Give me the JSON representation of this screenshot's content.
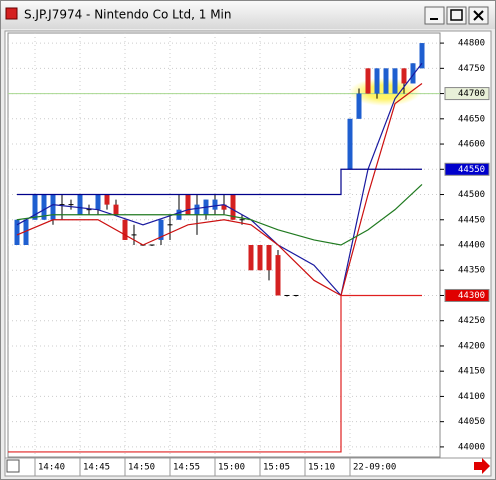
{
  "chart_data": {
    "type": "ohlc",
    "title": "S.JP.J7974 - Nintendo Co Ltd, 1 Min",
    "x": [
      1,
      2,
      3,
      4,
      5,
      6,
      7,
      8,
      9,
      10,
      11,
      12,
      13,
      14,
      15,
      16,
      17,
      18,
      19,
      20,
      21,
      22,
      23,
      24,
      25,
      26,
      27,
      28,
      29,
      30,
      31,
      32,
      38,
      39,
      40,
      41,
      42,
      43,
      44,
      45,
      46
    ],
    "open": [
      44400,
      44400,
      44450,
      44450,
      44450,
      44480,
      44480,
      44460,
      44470,
      44470,
      44500,
      44480,
      44450,
      44420,
      44400,
      44400,
      44410,
      44440,
      44450,
      44500,
      44460,
      44460,
      44470,
      44480,
      44500,
      44450,
      44400,
      44400,
      44400,
      44380,
      44300,
      44300,
      44550,
      44650,
      44750,
      44700,
      44700,
      44700,
      44750,
      44720,
      44750
    ],
    "high": [
      44450,
      44450,
      44500,
      44500,
      44500,
      44500,
      44490,
      44500,
      44480,
      44500,
      44500,
      44490,
      44450,
      44440,
      44400,
      44400,
      44450,
      44460,
      44500,
      44500,
      44500,
      44490,
      44500,
      44500,
      44500,
      44460,
      44400,
      44400,
      44400,
      44390,
      44300,
      44300,
      44650,
      44710,
      44750,
      44750,
      44750,
      44750,
      44750,
      44760,
      44800
    ],
    "low": [
      44400,
      44400,
      44450,
      44450,
      44440,
      44450,
      44470,
      44460,
      44460,
      44460,
      44470,
      44460,
      44410,
      44400,
      44400,
      44400,
      44400,
      44410,
      44450,
      44460,
      44420,
      44450,
      44460,
      44460,
      44450,
      44440,
      44350,
      44350,
      44330,
      44300,
      44300,
      44300,
      44550,
      44650,
      44700,
      44690,
      44700,
      44700,
      44700,
      44720,
      44750
    ],
    "close": [
      44450,
      44450,
      44500,
      44500,
      44500,
      44480,
      44480,
      44500,
      44470,
      44500,
      44480,
      44460,
      44410,
      44420,
      44400,
      44400,
      44450,
      44440,
      44470,
      44460,
      44480,
      44490,
      44490,
      44470,
      44450,
      44450,
      44350,
      44350,
      44350,
      44300,
      44300,
      44300,
      44650,
      44700,
      44700,
      44750,
      44750,
      44750,
      44720,
      44760,
      44800
    ],
    "up_color": "#1f5fd0",
    "down_color": "#d42020",
    "flat_color": "#000000",
    "lines": [
      {
        "color": "#1a1aa0",
        "x": [
          1,
          5,
          10,
          15,
          20,
          24,
          27,
          30,
          34,
          37,
          40,
          43,
          46
        ],
        "values": [
          44440,
          44480,
          44470,
          44440,
          44470,
          44480,
          44450,
          44400,
          44360,
          44300,
          44550,
          44690,
          44760
        ]
      },
      {
        "color": "#cc1010",
        "x": [
          1,
          5,
          10,
          15,
          20,
          24,
          27,
          30,
          34,
          37,
          40,
          43,
          46
        ],
        "values": [
          44420,
          44450,
          44450,
          44400,
          44440,
          44450,
          44440,
          44400,
          44330,
          44300,
          44500,
          44680,
          44720
        ]
      },
      {
        "color": "#207a20",
        "x": [
          1,
          5,
          10,
          15,
          20,
          24,
          27,
          30,
          34,
          37,
          40,
          43,
          46
        ],
        "values": [
          44450,
          44460,
          44460,
          44460,
          44460,
          44460,
          44450,
          44430,
          44410,
          44400,
          44430,
          44470,
          44520
        ]
      },
      {
        "color": "#00008b",
        "x": [
          1,
          37,
          37,
          46
        ],
        "values": [
          44500,
          44500,
          44550,
          44550
        ]
      },
      {
        "color": "#e02020",
        "x": [
          0,
          37,
          37,
          46
        ],
        "values": [
          43990,
          43990,
          44300,
          44300
        ]
      }
    ],
    "hlines": [
      {
        "value": 44700,
        "color": "#a8d890"
      }
    ],
    "markers": [
      {
        "value": 44700,
        "color": "#e8f0d8",
        "text_color": "#000000"
      },
      {
        "value": 44550,
        "color": "#0000cc",
        "text_color": "#ffffff"
      },
      {
        "value": 44300,
        "color": "#e00000",
        "text_color": "#ffffff"
      }
    ],
    "xlim": [
      0,
      48
    ],
    "ylim": [
      43980,
      44820
    ],
    "xticks": [
      {
        "value": 3,
        "label": "14:40"
      },
      {
        "value": 8,
        "label": "14:45"
      },
      {
        "value": 13,
        "label": "14:50"
      },
      {
        "value": 18,
        "label": "14:55"
      },
      {
        "value": 23,
        "label": "15:00"
      },
      {
        "value": 28,
        "label": "15:05"
      },
      {
        "value": 33,
        "label": "15:10"
      },
      {
        "value": 38,
        "label": "22-09:00"
      }
    ],
    "yticks": [
      44000,
      44050,
      44100,
      44150,
      44200,
      44250,
      44300,
      44350,
      44400,
      44450,
      44500,
      44550,
      44600,
      44650,
      44700,
      44750,
      44800
    ],
    "grid": true
  }
}
